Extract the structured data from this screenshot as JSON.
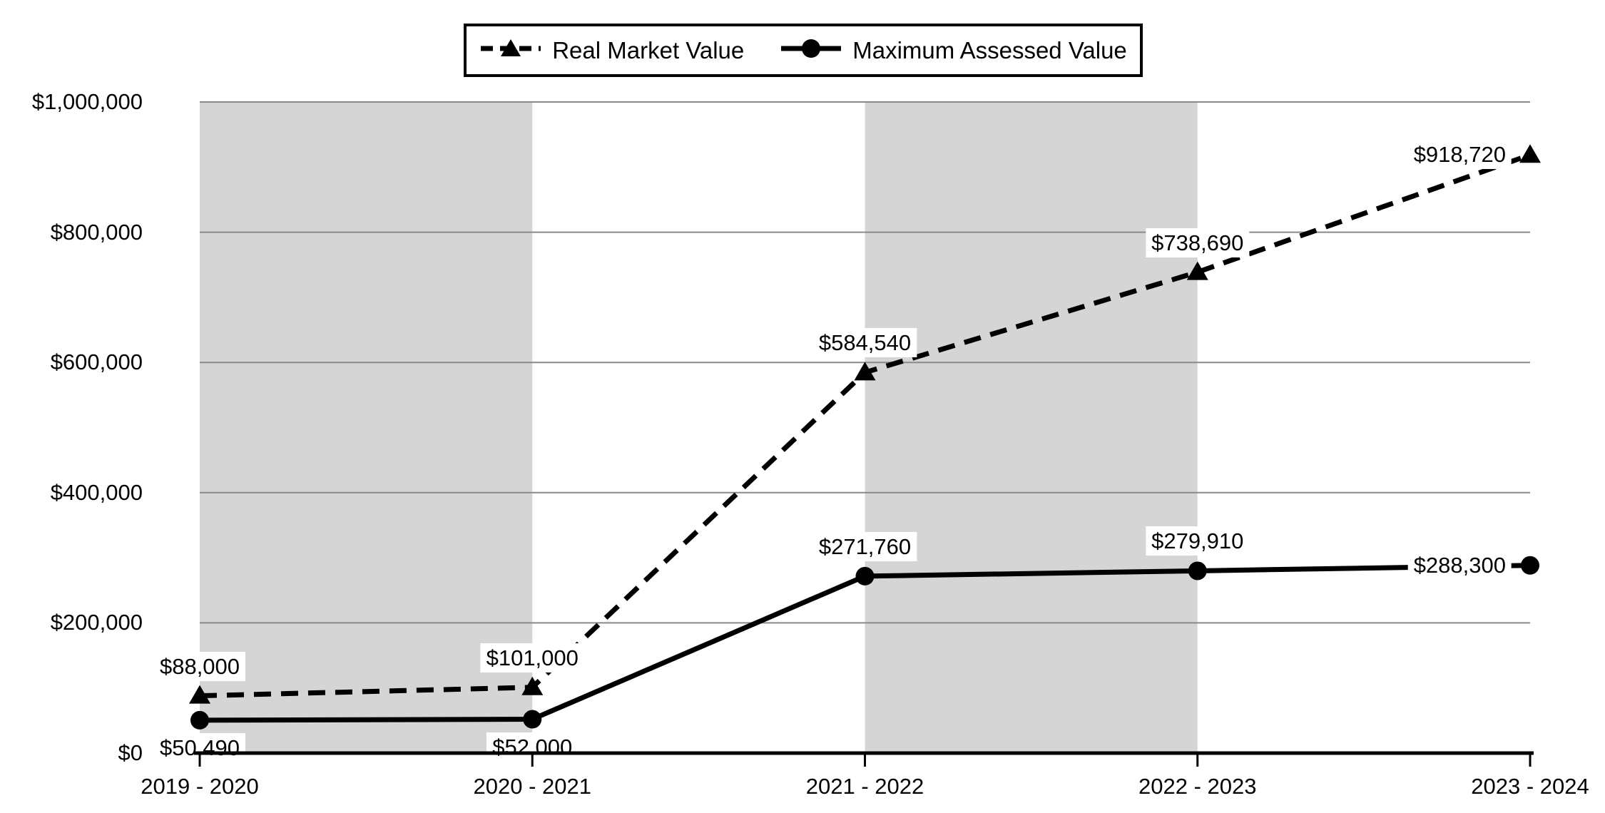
{
  "chart_data": {
    "type": "line",
    "title": "",
    "categories": [
      "2019 - 2020",
      "2020 - 2021",
      "2021 - 2022",
      "2022 - 2023",
      "2023 - 2024"
    ],
    "y_axis": {
      "min": 0,
      "max": 1000000,
      "step": 200000,
      "tick_labels": [
        "$0",
        "$200,000",
        "$400,000",
        "$600,000",
        "$800,000",
        "$1,000,000"
      ]
    },
    "series": [
      {
        "name": "Real Market Value",
        "line_style": "dashed",
        "marker": "triangle",
        "values": [
          88000,
          101000,
          584540,
          738690,
          918720
        ],
        "labels": [
          "$88,000",
          "$101,000",
          "$584,540",
          "$738,690",
          "$918,720"
        ],
        "label_placements": [
          "above",
          "above",
          "above",
          "above",
          "left"
        ]
      },
      {
        "name": "Maximum Assessed Value",
        "line_style": "solid",
        "marker": "circle",
        "values": [
          50490,
          52000,
          271760,
          279910,
          288300
        ],
        "labels": [
          "$50,490",
          "$52,000",
          "$271,760",
          "$279,910",
          "$288,300"
        ],
        "label_placements": [
          "below",
          "below",
          "above",
          "above",
          "left"
        ]
      }
    ],
    "plot_bands": {
      "color": "#D5D5D5",
      "category_intervals": [
        [
          0,
          1
        ],
        [
          2,
          3
        ]
      ]
    },
    "grid": true,
    "legend_position": "top",
    "colors": {
      "series": "#000000",
      "gridline": "#8A8A8A",
      "axis": "#000000",
      "background": "#FFFFFF"
    }
  }
}
